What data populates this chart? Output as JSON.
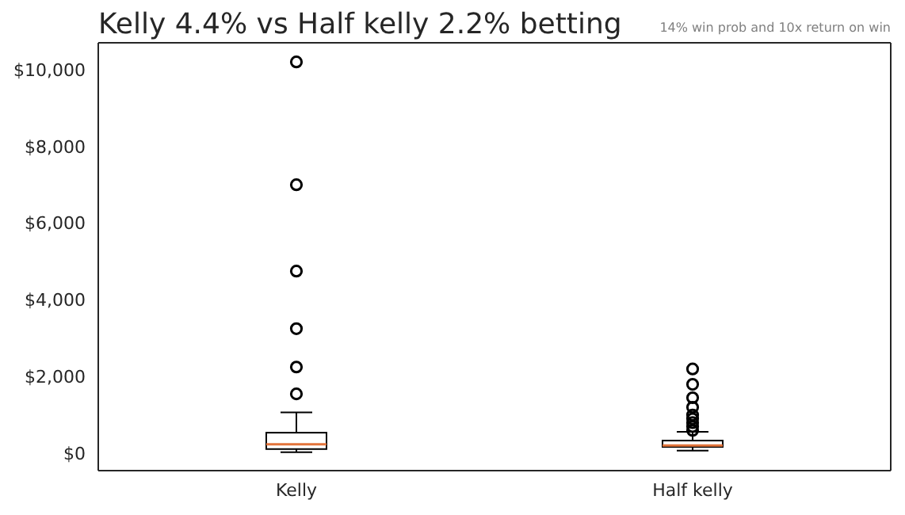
{
  "chart_data": {
    "type": "box",
    "title": "Kelly 4.4% vs Half kelly 2.2% betting",
    "subtitle": "14% win prob and 10x return on win",
    "categories": [
      "Kelly",
      "Half kelly"
    ],
    "boxes": [
      {
        "low": 30,
        "q1": 110,
        "median": 235,
        "q3": 535,
        "high": 1060,
        "outliers": [
          1550,
          2250,
          3250,
          4750,
          7000,
          10200
        ]
      },
      {
        "low": 70,
        "q1": 165,
        "median": 205,
        "q3": 330,
        "high": 560,
        "outliers": [
          600,
          700,
          800,
          900,
          1000,
          1200,
          1450,
          1800,
          2200
        ]
      }
    ],
    "ylim": [
      -450,
      10700
    ],
    "yticks": [
      {
        "value": 0,
        "label": "$0"
      },
      {
        "value": 2000,
        "label": "$2,000"
      },
      {
        "value": 4000,
        "label": "$4,000"
      },
      {
        "value": 6000,
        "label": "$6,000"
      },
      {
        "value": 8000,
        "label": "$8,000"
      },
      {
        "value": 10000,
        "label": "$10,000"
      }
    ],
    "color": "#000000"
  }
}
